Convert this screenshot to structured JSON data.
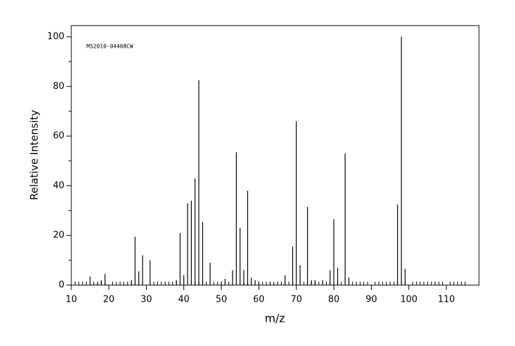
{
  "chart_data": {
    "type": "stick",
    "annotation": "MS2010-04408CW",
    "xlabel": "m/z",
    "ylabel": "Relative Intensity",
    "x": [
      15,
      17,
      18,
      19,
      26,
      27,
      28,
      29,
      31,
      38,
      39,
      40,
      41,
      42,
      43,
      44,
      45,
      47,
      50,
      51,
      53,
      54,
      55,
      56,
      57,
      58,
      59,
      60,
      63,
      65,
      67,
      69,
      70,
      71,
      73,
      74,
      75,
      77,
      79,
      80,
      81,
      83,
      84,
      97,
      98,
      99
    ],
    "values": [
      3.5,
      1,
      2,
      4.5,
      2,
      19.5,
      5.5,
      12,
      10,
      2,
      21,
      4,
      33,
      34,
      43,
      82.5,
      25.5,
      9,
      1.5,
      2.5,
      6,
      53.5,
      23,
      6,
      38,
      3,
      2,
      1.5,
      1,
      1,
      4,
      15.5,
      66,
      8,
      31.5,
      2,
      2,
      2,
      6,
      26.5,
      7,
      53,
      3,
      32.5,
      100,
      6.5
    ],
    "color": "#000000",
    "xlim": [
      10,
      118.7
    ],
    "ylim": [
      0,
      104.5
    ],
    "xticks": [
      10,
      20,
      30,
      40,
      50,
      60,
      70,
      80,
      90,
      100,
      110
    ],
    "xminorticks": [
      11,
      12,
      13,
      14,
      15,
      16,
      17,
      18,
      19,
      21,
      22,
      23,
      24,
      25,
      26,
      27,
      28,
      29,
      31,
      32,
      33,
      34,
      35,
      36,
      37,
      38,
      39,
      41,
      42,
      43,
      44,
      45,
      46,
      47,
      48,
      49,
      51,
      52,
      53,
      54,
      55,
      56,
      57,
      58,
      59,
      61,
      62,
      63,
      64,
      65,
      66,
      67,
      68,
      69,
      71,
      72,
      73,
      74,
      75,
      76,
      77,
      78,
      79,
      81,
      82,
      83,
      84,
      85,
      86,
      87,
      88,
      89,
      91,
      92,
      93,
      94,
      95,
      96,
      97,
      98,
      99,
      101,
      102,
      103,
      104,
      105,
      106,
      107,
      108,
      109,
      111,
      112,
      113,
      114,
      115
    ],
    "yticks": [
      0,
      20,
      40,
      60,
      80,
      100
    ],
    "yminorticks": [
      10,
      30,
      50,
      70,
      90
    ]
  }
}
